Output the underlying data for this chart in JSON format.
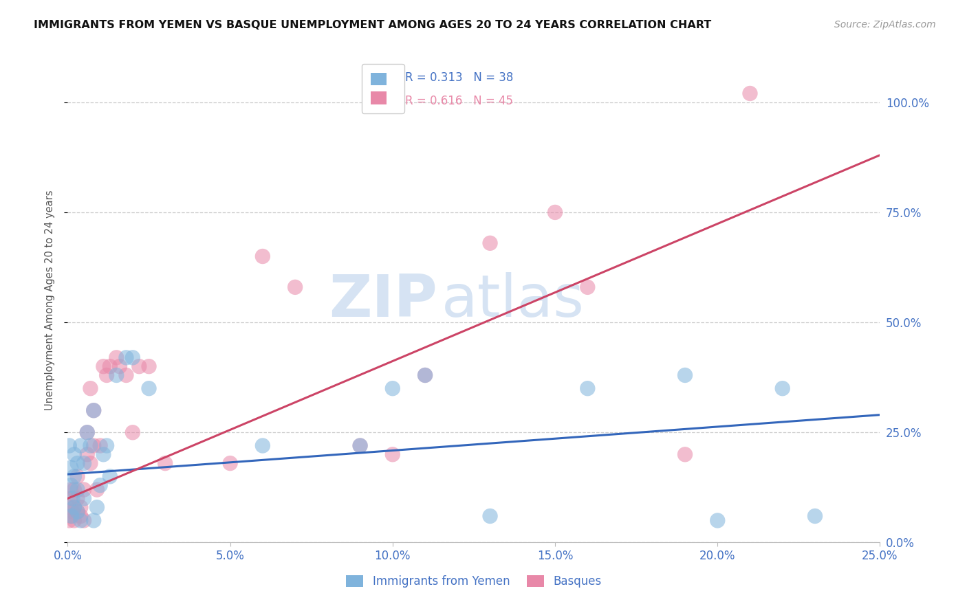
{
  "title": "IMMIGRANTS FROM YEMEN VS BASQUE UNEMPLOYMENT AMONG AGES 20 TO 24 YEARS CORRELATION CHART",
  "source": "Source: ZipAtlas.com",
  "ylabel": "Unemployment Among Ages 20 to 24 years",
  "xlim": [
    0.0,
    0.25
  ],
  "ylim": [
    0.0,
    1.1
  ],
  "yticks": [
    0.0,
    0.25,
    0.5,
    0.75,
    1.0
  ],
  "xticks": [
    0.0,
    0.05,
    0.1,
    0.15,
    0.2,
    0.25
  ],
  "blue_R": 0.313,
  "blue_N": 38,
  "pink_R": 0.616,
  "pink_N": 45,
  "blue_color": "#7FB3DC",
  "pink_color": "#E888A8",
  "blue_line_color": "#3366BB",
  "pink_line_color": "#CC4466",
  "watermark_zip": "ZIP",
  "watermark_atlas": "atlas",
  "legend_label_blue": "Immigrants from Yemen",
  "legend_label_pink": "Basques",
  "blue_scatter_x": [
    0.0005,
    0.001,
    0.001,
    0.0012,
    0.0015,
    0.002,
    0.002,
    0.002,
    0.003,
    0.003,
    0.003,
    0.004,
    0.004,
    0.005,
    0.005,
    0.006,
    0.007,
    0.008,
    0.008,
    0.009,
    0.01,
    0.011,
    0.012,
    0.013,
    0.015,
    0.018,
    0.02,
    0.025,
    0.06,
    0.09,
    0.1,
    0.11,
    0.13,
    0.16,
    0.19,
    0.2,
    0.22,
    0.23
  ],
  "blue_scatter_y": [
    0.22,
    0.17,
    0.13,
    0.06,
    0.1,
    0.2,
    0.15,
    0.08,
    0.18,
    0.12,
    0.07,
    0.05,
    0.22,
    0.18,
    0.1,
    0.25,
    0.22,
    0.3,
    0.05,
    0.08,
    0.13,
    0.2,
    0.22,
    0.15,
    0.38,
    0.42,
    0.42,
    0.35,
    0.22,
    0.22,
    0.35,
    0.38,
    0.06,
    0.35,
    0.38,
    0.05,
    0.35,
    0.06
  ],
  "pink_scatter_x": [
    0.0003,
    0.0005,
    0.001,
    0.001,
    0.001,
    0.0015,
    0.002,
    0.002,
    0.002,
    0.003,
    0.003,
    0.003,
    0.004,
    0.004,
    0.005,
    0.005,
    0.006,
    0.006,
    0.007,
    0.007,
    0.008,
    0.008,
    0.009,
    0.01,
    0.011,
    0.012,
    0.013,
    0.015,
    0.016,
    0.018,
    0.02,
    0.022,
    0.025,
    0.03,
    0.05,
    0.06,
    0.07,
    0.09,
    0.1,
    0.11,
    0.13,
    0.15,
    0.16,
    0.19,
    0.21
  ],
  "pink_scatter_y": [
    0.08,
    0.05,
    0.06,
    0.1,
    0.12,
    0.07,
    0.05,
    0.08,
    0.12,
    0.07,
    0.1,
    0.15,
    0.06,
    0.08,
    0.05,
    0.12,
    0.2,
    0.25,
    0.18,
    0.35,
    0.22,
    0.3,
    0.12,
    0.22,
    0.4,
    0.38,
    0.4,
    0.42,
    0.4,
    0.38,
    0.25,
    0.4,
    0.4,
    0.18,
    0.18,
    0.65,
    0.58,
    0.22,
    0.2,
    0.38,
    0.68,
    0.75,
    0.58,
    0.2,
    1.02
  ],
  "blue_trendline_x": [
    0.0,
    0.25
  ],
  "blue_trendline_y": [
    0.155,
    0.29
  ],
  "pink_trendline_x": [
    0.0,
    0.25
  ],
  "pink_trendline_y": [
    0.1,
    0.88
  ]
}
